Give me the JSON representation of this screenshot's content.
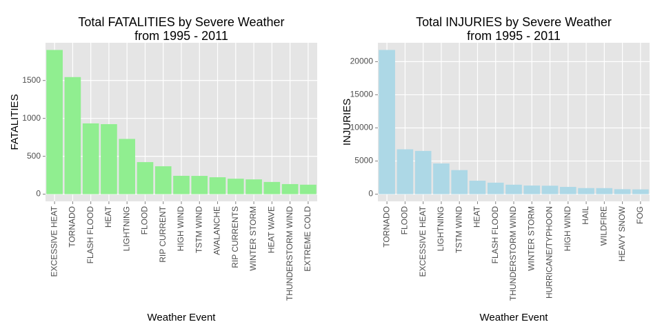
{
  "chart_data": [
    {
      "type": "bar",
      "title": [
        "Total FATALITIES by Severe Weather",
        "from 1995 - 2011"
      ],
      "x_label": "Weather Event",
      "y_label": "FATALITIES",
      "categories": [
        "EXCESSIVE HEAT",
        "TORNADO",
        "FLASH FLOOD",
        "HEAT",
        "LIGHTNING",
        "FLOOD",
        "RIP CURRENT",
        "HIGH WIND",
        "TSTM WIND",
        "AVALANCHE",
        "RIP CURRENTS",
        "WINTER STORM",
        "HEAT WAVE",
        "THUNDERSTORM WIND",
        "EXTREME COLD"
      ],
      "values": [
        1903,
        1545,
        934,
        924,
        729,
        423,
        368,
        242,
        241,
        223,
        204,
        195,
        161,
        133,
        125
      ],
      "color": "#90EE90",
      "ylim": [
        -95,
        1998
      ],
      "yticks": [
        0,
        500,
        1000,
        1500
      ],
      "grid": true
    },
    {
      "type": "bar",
      "title": [
        "Total INJURIES by Severe Weather",
        "from 1995 - 2011"
      ],
      "x_label": "Weather Event",
      "y_label": "INJURIES",
      "categories": [
        "TORNADO",
        "FLOOD",
        "EXCESSIVE HEAT",
        "LIGHTNING",
        "TSTM WIND",
        "HEAT",
        "FLASH FLOOD",
        "THUNDERSTORM WIND",
        "WINTER STORM",
        "HURRICANE/TYPHOON",
        "HIGH WIND",
        "HAIL",
        "WILDFIRE",
        "HEAVY SNOW",
        "FOG"
      ],
      "values": [
        21765,
        6770,
        6525,
        4631,
        3630,
        2030,
        1734,
        1426,
        1298,
        1275,
        1093,
        916,
        911,
        751,
        718
      ],
      "color": "#ADD8E6",
      "ylim": [
        -1088,
        22853
      ],
      "yticks": [
        0,
        5000,
        10000,
        15000,
        20000
      ],
      "grid": true
    }
  ]
}
